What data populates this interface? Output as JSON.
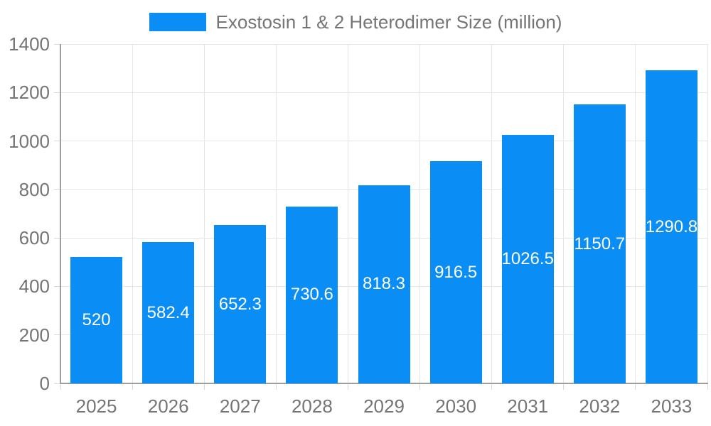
{
  "legend": {
    "label": "Exostosin 1 & 2 Heterodimer Size (million)"
  },
  "colors": {
    "bar": "#0A8EF5",
    "grid": "#E6E6E6",
    "tick": "#D8D8D8",
    "axis": "#9E9E9E",
    "tick_text": "#757575",
    "value_label_text": "#FFFFFF",
    "background": "#FFFFFF"
  },
  "chart_data": {
    "type": "bar",
    "title": "Exostosin 1 & 2 Heterodimer Size (million)",
    "categories": [
      "2025",
      "2026",
      "2027",
      "2028",
      "2029",
      "2030",
      "2031",
      "2032",
      "2033"
    ],
    "series": [
      {
        "name": "Exostosin 1 & 2 Heterodimer Size (million)",
        "values": [
          520,
          582.4,
          652.3,
          730.6,
          818.3,
          916.5,
          1026.5,
          1150.7,
          1290.8
        ]
      }
    ],
    "xlabel": "",
    "ylabel": "",
    "ylim": [
      0,
      1400
    ],
    "yticks": [
      0,
      200,
      400,
      600,
      800,
      1000,
      1200,
      1400
    ],
    "grid": true,
    "legend_position": "top-center",
    "value_labels": "inside-center"
  }
}
